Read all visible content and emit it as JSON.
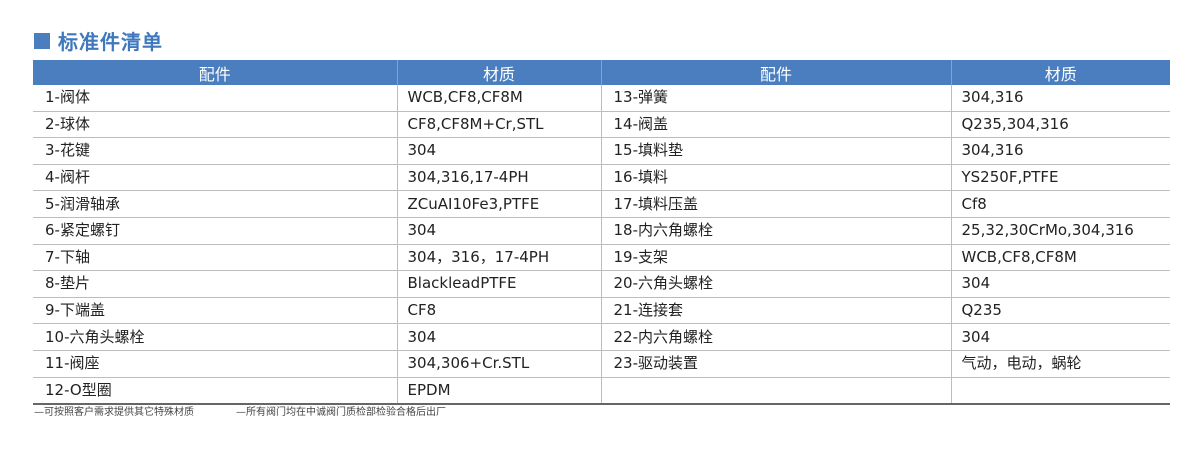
{
  "title": "标准件清单",
  "colors": {
    "accent": "#4a7ebf"
  },
  "headers": [
    "配件",
    "材质",
    "配件",
    "材质"
  ],
  "rows": [
    {
      "p1": "1-阀体",
      "m1": "WCB,CF8,CF8M",
      "p2": "13-弹簧",
      "m2": "304,316"
    },
    {
      "p1": "2-球体",
      "m1": "CF8,CF8M+Cr,STL",
      "p2": "14-阀盖",
      "m2": "Q235,304,316"
    },
    {
      "p1": "3-花键",
      "m1": "304",
      "p2": "15-填料垫",
      "m2": "304,316"
    },
    {
      "p1": "4-阀杆",
      "m1": "304,316,17-4PH",
      "p2": "16-填料",
      "m2": "YS250F,PTFE"
    },
    {
      "p1": "5-润滑轴承",
      "m1": "ZCuAI10Fe3,PTFE",
      "p2": "17-填料压盖",
      "m2": "Cf8"
    },
    {
      "p1": "6-紧定螺钉",
      "m1": "304",
      "p2": "18-内六角螺栓",
      "m2": "25,32,30CrMo,304,316"
    },
    {
      "p1": "7-下轴",
      "m1": "304，316，17-4PH",
      "p2": "19-支架",
      "m2": "WCB,CF8,CF8M"
    },
    {
      "p1": "8-垫片",
      "m1": "BlackleadPTFE",
      "p2": "20-六角头螺栓",
      "m2": "304"
    },
    {
      "p1": "9-下端盖",
      "m1": "CF8",
      "p2": "21-连接套",
      "m2": "Q235"
    },
    {
      "p1": "10-六角头螺栓",
      "m1": "304",
      "p2": "22-内六角螺栓",
      "m2": "304"
    },
    {
      "p1": "11-阀座",
      "m1": "304,306+Cr.STL",
      "p2": "23-驱动装置",
      "m2": "气动，电动，蜗轮"
    },
    {
      "p1": "12-O型圈",
      "m1": "EPDM",
      "p2": "",
      "m2": ""
    }
  ],
  "notes": [
    "—可按照客户需求提供其它特殊材质",
    "—所有阀门均在中诚阀门质检部检验合格后出厂"
  ]
}
